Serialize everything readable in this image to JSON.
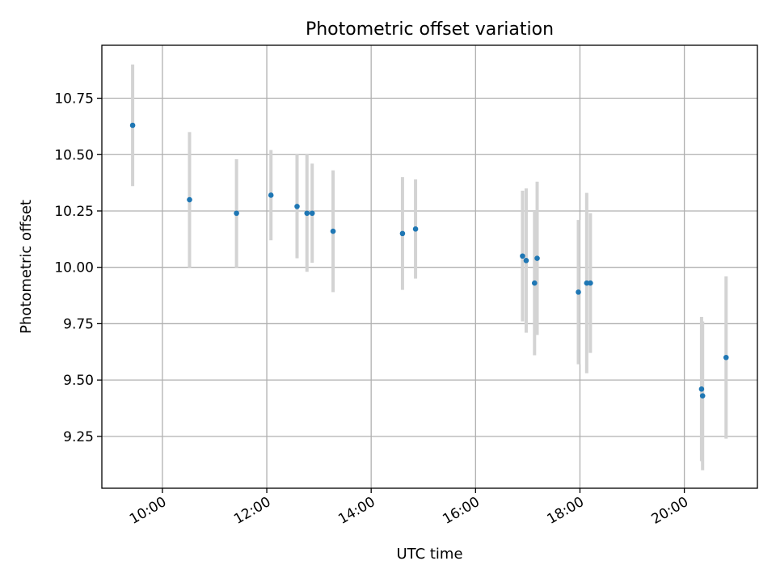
{
  "chart_data": {
    "type": "scatter",
    "title": "Photometric offset variation",
    "xlabel": "UTC time",
    "ylabel": "Photometric offset",
    "x_unit": "hours UTC",
    "xlim": [
      8.84,
      21.4
    ],
    "ylim": [
      9.02,
      10.985
    ],
    "x_ticks": [
      {
        "value": 10,
        "label": "10:00"
      },
      {
        "value": 12,
        "label": "12:00"
      },
      {
        "value": 14,
        "label": "14:00"
      },
      {
        "value": 16,
        "label": "16:00"
      },
      {
        "value": 18,
        "label": "18:00"
      },
      {
        "value": 20,
        "label": "20:00"
      }
    ],
    "y_ticks": [
      {
        "value": 9.25,
        "label": "9.25"
      },
      {
        "value": 9.5,
        "label": "9.50"
      },
      {
        "value": 9.75,
        "label": "9.75"
      },
      {
        "value": 10.0,
        "label": "10.00"
      },
      {
        "value": 10.25,
        "label": "10.25"
      },
      {
        "value": 10.5,
        "label": "10.50"
      },
      {
        "value": 10.75,
        "label": "10.75"
      }
    ],
    "grid": true,
    "series": [
      {
        "marker_color": "#1f77b4",
        "errorbar_color": "#d3d3d3",
        "points": [
          {
            "x": 9.43,
            "y": 10.63,
            "err": 0.27
          },
          {
            "x": 10.52,
            "y": 10.3,
            "err": 0.3
          },
          {
            "x": 11.42,
            "y": 10.24,
            "err": 0.24
          },
          {
            "x": 12.08,
            "y": 10.32,
            "err": 0.2
          },
          {
            "x": 12.58,
            "y": 10.27,
            "err": 0.23
          },
          {
            "x": 12.77,
            "y": 10.24,
            "err": 0.26
          },
          {
            "x": 12.87,
            "y": 10.24,
            "err": 0.22
          },
          {
            "x": 13.27,
            "y": 10.16,
            "err": 0.27
          },
          {
            "x": 14.6,
            "y": 10.15,
            "err": 0.25
          },
          {
            "x": 14.85,
            "y": 10.17,
            "err": 0.22
          },
          {
            "x": 16.9,
            "y": 10.05,
            "err": 0.29
          },
          {
            "x": 16.97,
            "y": 10.03,
            "err": 0.32
          },
          {
            "x": 17.13,
            "y": 9.93,
            "err": 0.32
          },
          {
            "x": 17.18,
            "y": 10.04,
            "err": 0.34
          },
          {
            "x": 17.97,
            "y": 9.89,
            "err": 0.32
          },
          {
            "x": 18.13,
            "y": 9.93,
            "err": 0.4
          },
          {
            "x": 18.2,
            "y": 9.93,
            "err": 0.31
          },
          {
            "x": 20.33,
            "y": 9.46,
            "err": 0.32
          },
          {
            "x": 20.35,
            "y": 9.43,
            "err": 0.33
          },
          {
            "x": 20.8,
            "y": 9.6,
            "err": 0.36
          }
        ]
      }
    ]
  }
}
